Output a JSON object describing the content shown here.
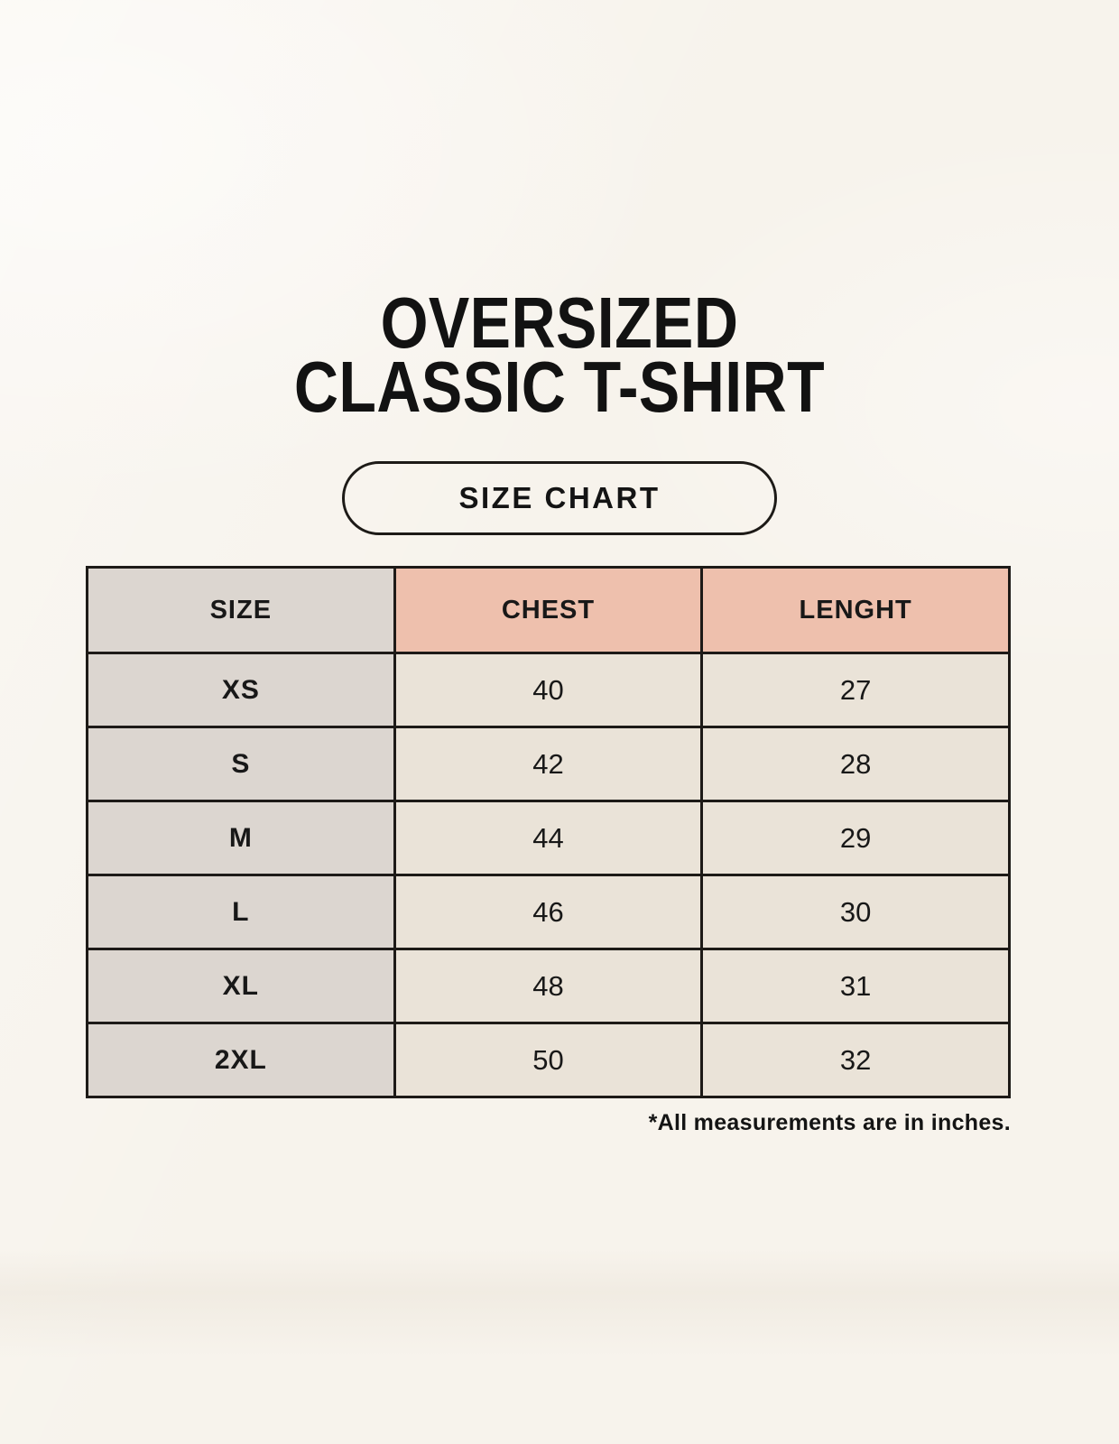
{
  "title": {
    "line1": "OVERSIZED",
    "line2": "CLASSIC T-SHIRT"
  },
  "button": {
    "label": "SIZE CHART"
  },
  "chart_data": {
    "type": "table",
    "title": "OVERSIZED CLASSIC T-SHIRT",
    "subtitle": "SIZE CHART",
    "columns": [
      "SIZE",
      "CHEST",
      "LENGHT"
    ],
    "rows": [
      [
        "XS",
        "40",
        "27"
      ],
      [
        "S",
        "42",
        "28"
      ],
      [
        "M",
        "44",
        "29"
      ],
      [
        "L",
        "46",
        "30"
      ],
      [
        "XL",
        "48",
        "31"
      ],
      [
        "2XL",
        "50",
        "32"
      ]
    ],
    "units_note": "*All measurements are in inches."
  },
  "colors": {
    "background": "#f7f3ec",
    "header_pink": "#eec0ad",
    "column_gray": "#dcd6d0",
    "cell_cream": "#eae3d8",
    "border": "#1d1a17",
    "text": "#181818"
  }
}
